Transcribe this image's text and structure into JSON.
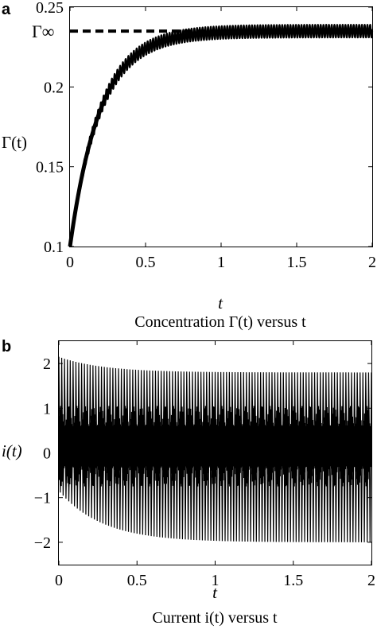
{
  "colors": {
    "line": "#000000",
    "background": "#ffffff"
  },
  "chart_data": [
    {
      "type": "line",
      "panel_label": "a",
      "title": "",
      "xlabel": "t",
      "ylabel": "Γ(t)",
      "caption": "Concentration Γ(t) versus t",
      "xlim": [
        0,
        2
      ],
      "ylim": [
        0.1,
        0.25
      ],
      "xticks": [
        {
          "value": 0,
          "label": "0"
        },
        {
          "value": 0.5,
          "label": "0.5"
        },
        {
          "value": 1,
          "label": "1"
        },
        {
          "value": 1.5,
          "label": "1.5"
        },
        {
          "value": 2,
          "label": "2"
        }
      ],
      "yticks": [
        {
          "value": 0.1,
          "label": "0.1"
        },
        {
          "value": 0.15,
          "label": "0.15"
        },
        {
          "value": 0.2,
          "label": "0.2"
        },
        {
          "value": 0.25,
          "label": "0.25"
        }
      ],
      "grid": false,
      "reference_line": {
        "label": "Γ∞",
        "y": 0.235,
        "x_end": 1.1,
        "style": "dashed"
      },
      "series": [
        {
          "initial": 0.1,
          "asymptote": 0.235,
          "time_constant": 0.2,
          "oscillation_cycles": 110,
          "envelope_halfwidth": 0.004
        }
      ]
    },
    {
      "type": "line",
      "panel_label": "b",
      "title": "",
      "xlabel": "t",
      "ylabel": "i(t)",
      "caption": "Current i(t) versus t",
      "xlim": [
        0,
        2
      ],
      "ylim": [
        -2.5,
        2.5
      ],
      "xticks": [
        {
          "value": 0,
          "label": "0"
        },
        {
          "value": 0.5,
          "label": "0.5"
        },
        {
          "value": 1,
          "label": "1"
        },
        {
          "value": 1.5,
          "label": "1.5"
        },
        {
          "value": 2,
          "label": "2"
        }
      ],
      "yticks": [
        {
          "value": -2,
          "label": "−2"
        },
        {
          "value": -1,
          "label": "−1"
        },
        {
          "value": 0,
          "label": "0"
        },
        {
          "value": 1,
          "label": "1"
        },
        {
          "value": 2,
          "label": "2"
        }
      ],
      "grid": false,
      "series": [
        {
          "offset": 0.15,
          "upper_start": 2.15,
          "upper_end": 1.8,
          "lower_start": -0.85,
          "lower_end": -2.0,
          "time_constant": 0.28,
          "oscillation_cycles": 110
        }
      ]
    }
  ]
}
